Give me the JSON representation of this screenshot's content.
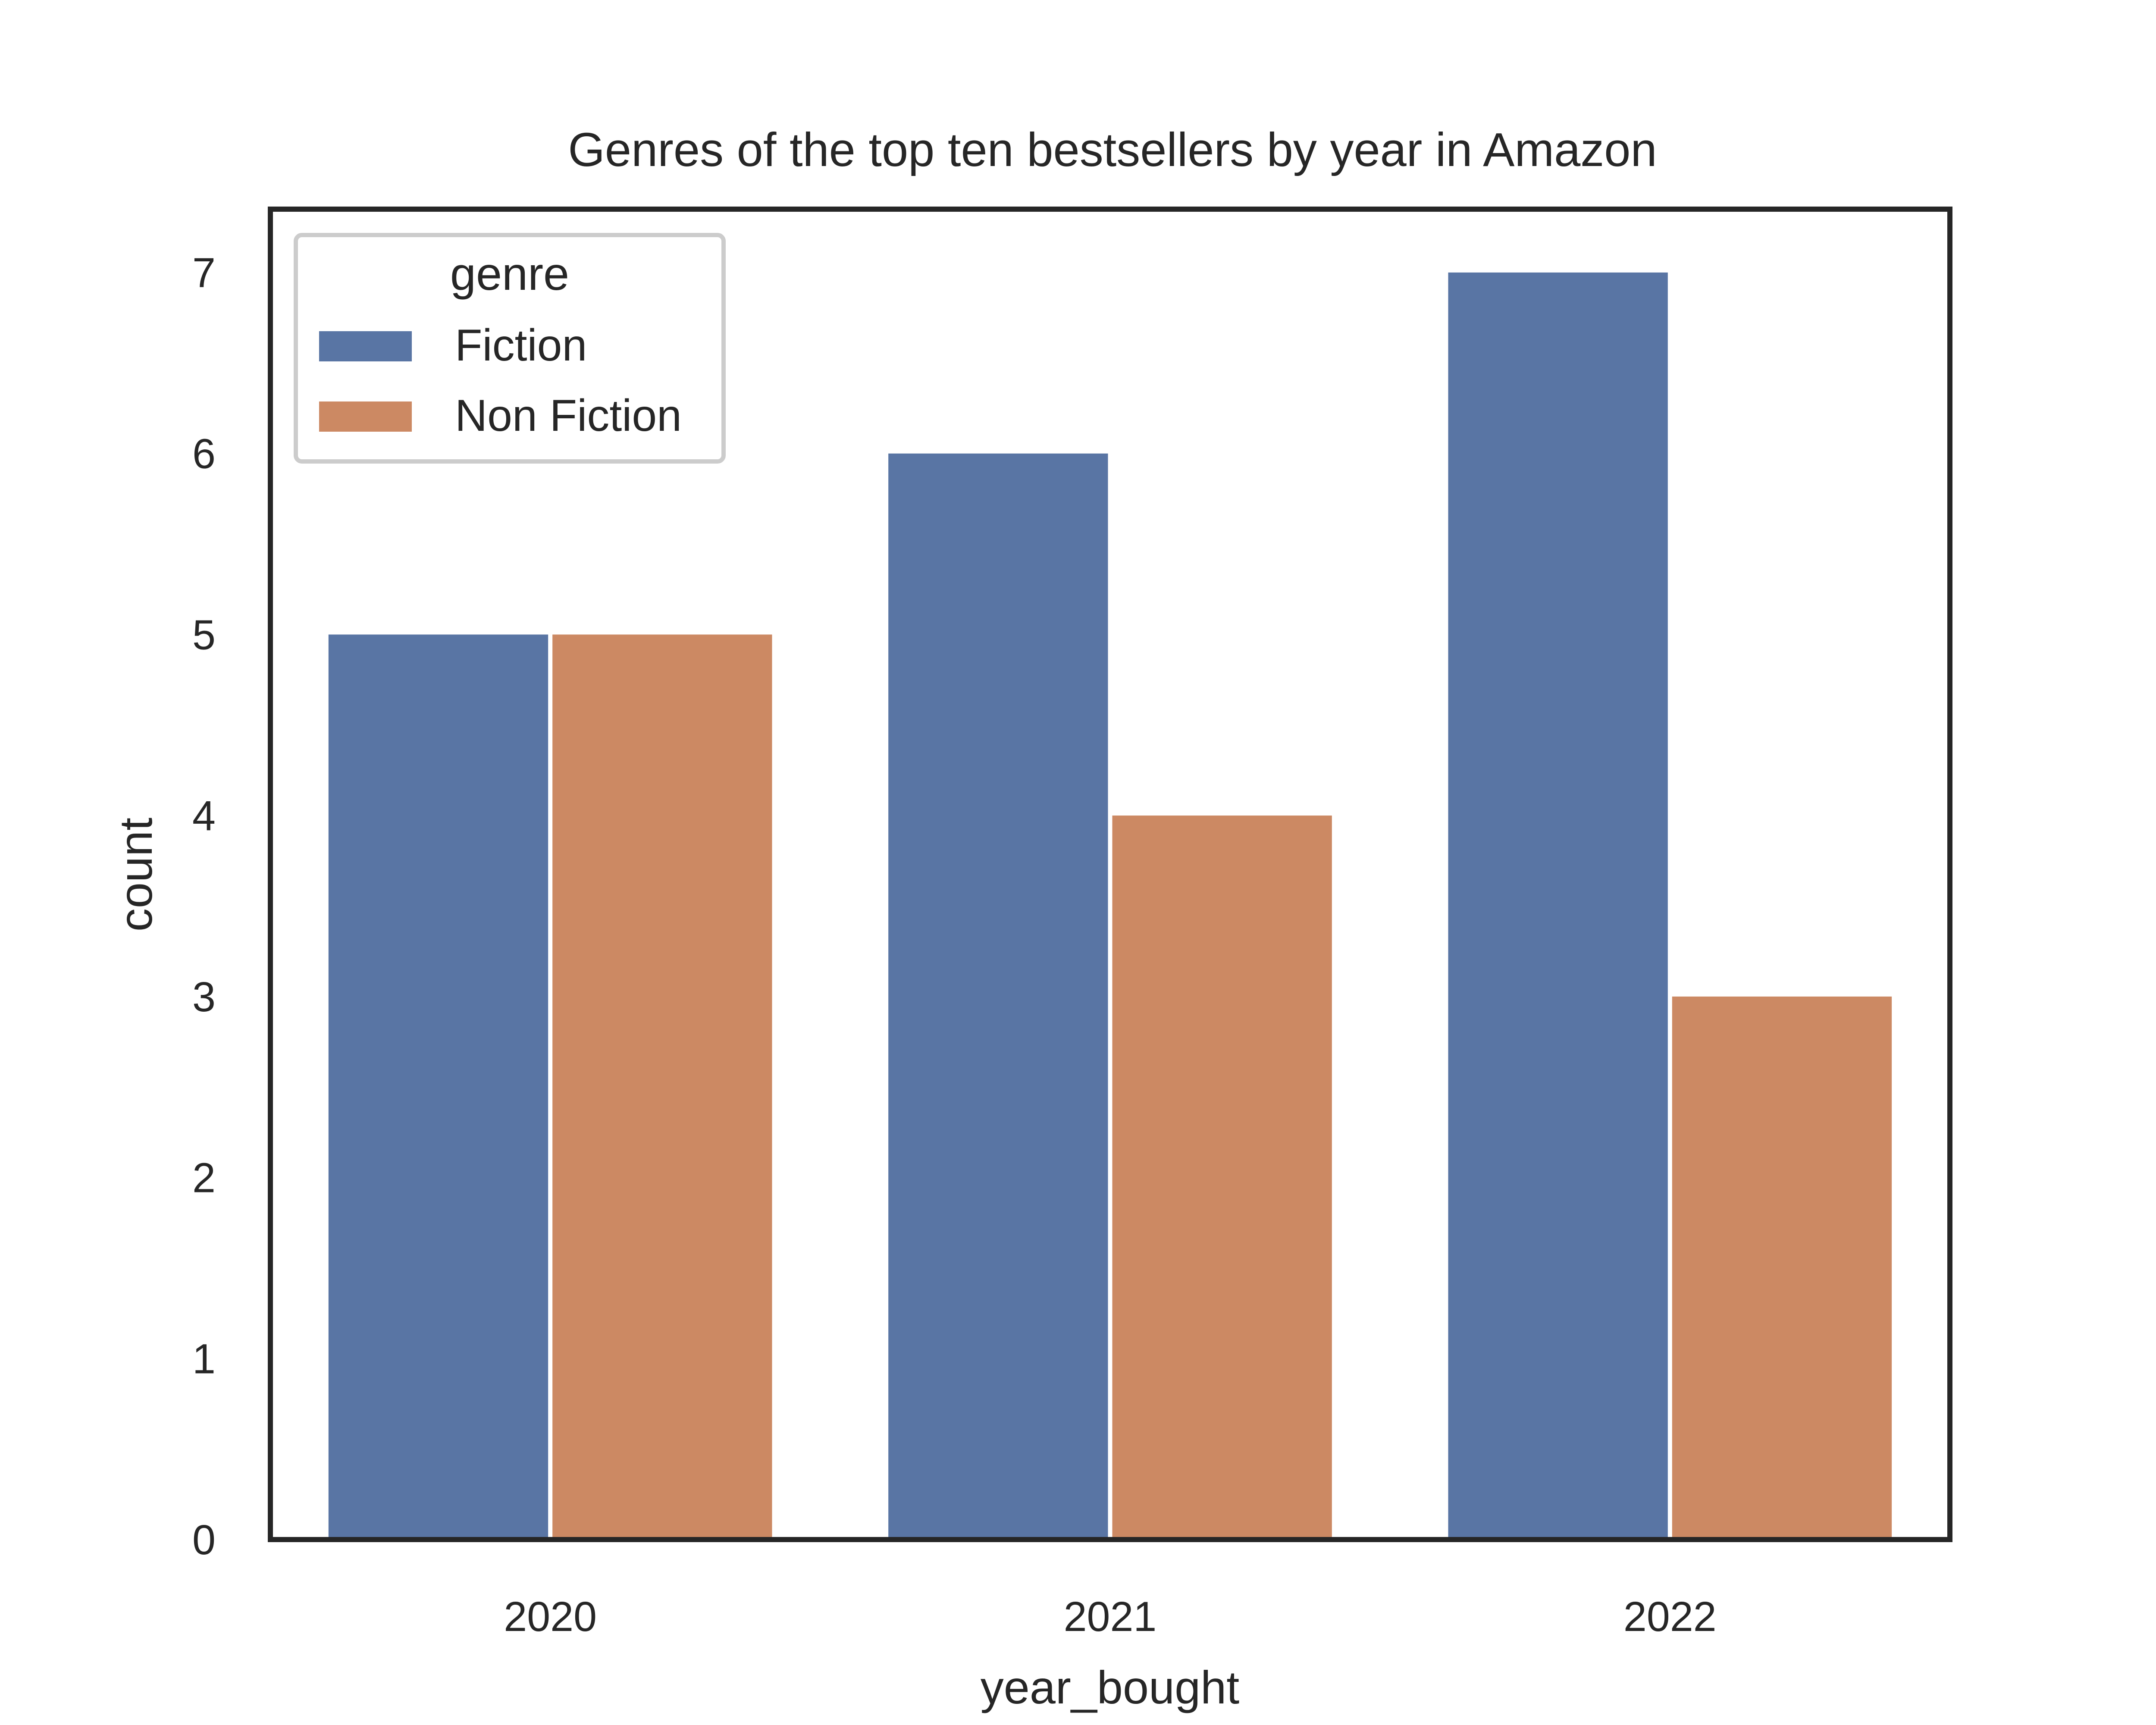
{
  "chart_data": {
    "type": "bar",
    "title": "Genres of the top ten bestsellers by year in Amazon",
    "xlabel": "year_bought",
    "ylabel": "count",
    "categories": [
      "2020",
      "2021",
      "2022"
    ],
    "series": [
      {
        "name": "Fiction",
        "values": [
          5,
          6,
          7
        ],
        "color": "#5975a4"
      },
      {
        "name": "Non Fiction",
        "values": [
          5,
          4,
          3
        ],
        "color": "#cc8963"
      }
    ],
    "yticks": [
      0,
      1,
      2,
      3,
      4,
      5,
      6,
      7
    ],
    "ylim": [
      0,
      7.35
    ],
    "grid": false,
    "legend": {
      "title": "genre",
      "placement": "upper-left"
    }
  }
}
